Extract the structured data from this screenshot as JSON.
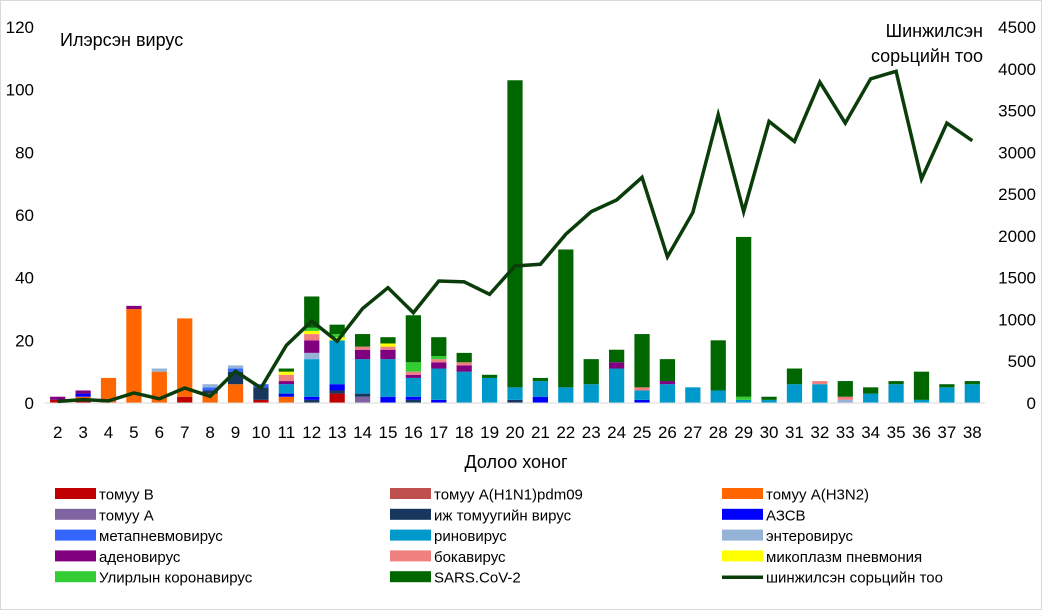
{
  "chart_data": {
    "type": "bar",
    "stacked": true,
    "title": "",
    "xlabel": "Долоо хоног",
    "ylabel": "Илэрсэн вирус",
    "y2label_lines": [
      "Шинжилсэн",
      "сорьцийн тоо"
    ],
    "ylim": [
      0,
      120
    ],
    "y_ticks": [
      "0",
      "20",
      "40",
      "60",
      "80",
      "100",
      "120"
    ],
    "y2lim": [
      0,
      4500
    ],
    "y2_ticks": [
      "0",
      "500",
      "1000",
      "1500",
      "2000",
      "2500",
      "3000",
      "3500",
      "4000",
      "4500"
    ],
    "grid": false,
    "legend_position": "bottom",
    "categories": [
      "2",
      "3",
      "4",
      "5",
      "6",
      "7",
      "8",
      "9",
      "10",
      "11",
      "12",
      "13",
      "14",
      "15",
      "16",
      "17",
      "18",
      "19",
      "20",
      "21",
      "22",
      "23",
      "24",
      "25",
      "26",
      "27",
      "28",
      "29",
      "30",
      "31",
      "32",
      "33",
      "34",
      "35",
      "36",
      "37",
      "38"
    ],
    "series": [
      {
        "name": "томуу В",
        "color": "#c00000",
        "values": [
          1,
          1,
          0,
          0,
          0,
          2,
          0,
          0,
          1,
          0,
          0,
          3,
          0,
          0,
          0,
          0,
          0,
          0,
          0,
          0,
          0,
          0,
          0,
          0,
          0,
          0,
          0,
          0,
          0,
          0,
          0,
          0,
          0,
          0,
          0,
          0,
          0
        ]
      },
      {
        "name": "томуу А(Н1N1)pdm09",
        "color": "#c0504d",
        "values": [
          0,
          0,
          0,
          0,
          0,
          0,
          0,
          0,
          0,
          0,
          0,
          0,
          0,
          0,
          0,
          0,
          0,
          0,
          0,
          0,
          0,
          0,
          0,
          0,
          0,
          0,
          0,
          0,
          0,
          0,
          0,
          0,
          0,
          0,
          0,
          0,
          0
        ]
      },
      {
        "name": "томуу А(Н3N2)",
        "color": "#ff6600",
        "values": [
          0,
          1,
          8,
          30,
          10,
          25,
          3,
          6,
          0,
          2,
          0,
          0,
          0,
          0,
          0,
          0,
          0,
          0,
          0,
          0,
          0,
          0,
          0,
          0,
          0,
          0,
          0,
          0,
          0,
          0,
          0,
          0,
          0,
          0,
          0,
          0,
          0
        ]
      },
      {
        "name": "томуу А",
        "color": "#8064a2",
        "values": [
          0,
          0,
          0,
          0,
          0,
          0,
          0,
          0,
          0,
          0,
          0,
          0,
          2,
          0,
          0,
          0,
          0,
          0,
          0,
          0,
          0,
          0,
          0,
          0,
          0,
          0,
          0,
          0,
          0,
          0,
          0,
          0,
          0,
          0,
          0,
          0,
          0
        ]
      },
      {
        "name": "иж томуугийн вирус",
        "color": "#17375e",
        "values": [
          0,
          0,
          0,
          0,
          0,
          0,
          1,
          4,
          4,
          0,
          1,
          1,
          1,
          0,
          1,
          0,
          0,
          0,
          1,
          0,
          0,
          0,
          0,
          0,
          0,
          0,
          0,
          0,
          0,
          0,
          0,
          0,
          0,
          0,
          0,
          0,
          0
        ]
      },
      {
        "name": "АЗСВ",
        "color": "#0000ff",
        "values": [
          0,
          1,
          0,
          0,
          0,
          0,
          0,
          0,
          0,
          1,
          1,
          2,
          0,
          2,
          1,
          1,
          0,
          0,
          0,
          2,
          0,
          0,
          0,
          1,
          0,
          0,
          0,
          0,
          0,
          0,
          0,
          0,
          0,
          0,
          0,
          0,
          0
        ]
      },
      {
        "name": "метапневмовирус",
        "color": "#3366ff",
        "values": [
          0,
          0,
          0,
          0,
          0,
          0,
          1,
          1,
          1,
          0,
          0,
          0,
          0,
          0,
          0,
          0,
          0,
          0,
          0,
          0,
          0,
          0,
          0,
          0,
          0,
          0,
          0,
          0,
          0,
          0,
          0,
          0,
          0,
          0,
          0,
          0,
          0
        ]
      },
      {
        "name": "риновирус",
        "color": "#0099cc",
        "values": [
          0,
          0,
          0,
          0,
          0,
          0,
          0,
          0,
          0,
          3,
          12,
          14,
          11,
          12,
          6,
          10,
          10,
          8,
          4,
          5,
          5,
          6,
          11,
          3,
          6,
          5,
          4,
          1,
          1,
          6,
          6,
          0,
          3,
          6,
          1,
          5,
          6
        ]
      },
      {
        "name": "энтеровирус",
        "color": "#95b3d7",
        "values": [
          0,
          0,
          0,
          0,
          1,
          0,
          1,
          1,
          0,
          0,
          2,
          0,
          0,
          0,
          0,
          0,
          0,
          0,
          0,
          0,
          0,
          0,
          0,
          0,
          0,
          0,
          0,
          0,
          0,
          0,
          0,
          1,
          0,
          0,
          0,
          0,
          0
        ]
      },
      {
        "name": "аденовирус",
        "color": "#800080",
        "values": [
          1,
          1,
          0,
          1,
          0,
          0,
          0,
          0,
          0,
          1,
          4,
          0,
          3,
          3,
          1,
          2,
          2,
          0,
          0,
          0,
          0,
          0,
          2,
          0,
          1,
          0,
          0,
          0,
          0,
          0,
          0,
          0,
          0,
          0,
          0,
          0,
          0
        ]
      },
      {
        "name": "бокавирус",
        "color": "#f08080",
        "values": [
          0,
          0,
          0,
          0,
          0,
          0,
          0,
          0,
          0,
          2,
          2,
          0,
          1,
          1,
          1,
          1,
          1,
          0,
          0,
          0,
          0,
          0,
          0,
          1,
          0,
          0,
          0,
          0,
          0,
          0,
          1,
          1,
          0,
          0,
          0,
          0,
          0
        ]
      },
      {
        "name": "микоплазм пневмония",
        "color": "#ffff00",
        "values": [
          0,
          0,
          0,
          0,
          0,
          0,
          0,
          0,
          0,
          1,
          1,
          1,
          0,
          1,
          0,
          0,
          0,
          0,
          0,
          0,
          0,
          0,
          0,
          0,
          0,
          0,
          0,
          0,
          0,
          0,
          0,
          0,
          0,
          0,
          0,
          0,
          0
        ]
      },
      {
        "name": "Улирлын коронавирус",
        "color": "#33cc33",
        "values": [
          0,
          0,
          0,
          0,
          0,
          0,
          0,
          0,
          0,
          0,
          1,
          1,
          0,
          0,
          3,
          1,
          0,
          0,
          0,
          0,
          0,
          0,
          0,
          0,
          0,
          0,
          0,
          1,
          0,
          0,
          0,
          0,
          0,
          0,
          0,
          0,
          0
        ]
      },
      {
        "name": "SARS.CoV-2",
        "color": "#006600",
        "values": [
          0,
          0,
          0,
          0,
          0,
          0,
          0,
          0,
          0,
          1,
          10,
          3,
          4,
          2,
          15,
          6,
          3,
          1,
          98,
          1,
          44,
          8,
          4,
          17,
          7,
          0,
          16,
          51,
          1,
          5,
          0,
          5,
          2,
          1,
          9,
          1,
          1
        ]
      }
    ],
    "line_series": {
      "name": "шинжилсэн сорьцийн тоо",
      "color": "#0b3d0b",
      "axis": "secondary",
      "values": [
        20,
        40,
        25,
        120,
        50,
        180,
        80,
        380,
        180,
        690,
        980,
        740,
        1130,
        1380,
        1080,
        1460,
        1450,
        1300,
        1640,
        1660,
        2020,
        2290,
        2430,
        2700,
        1750,
        2280,
        3450,
        2290,
        3370,
        3130,
        3840,
        3350,
        3880,
        3970,
        2680,
        3350,
        3140
      ]
    }
  }
}
